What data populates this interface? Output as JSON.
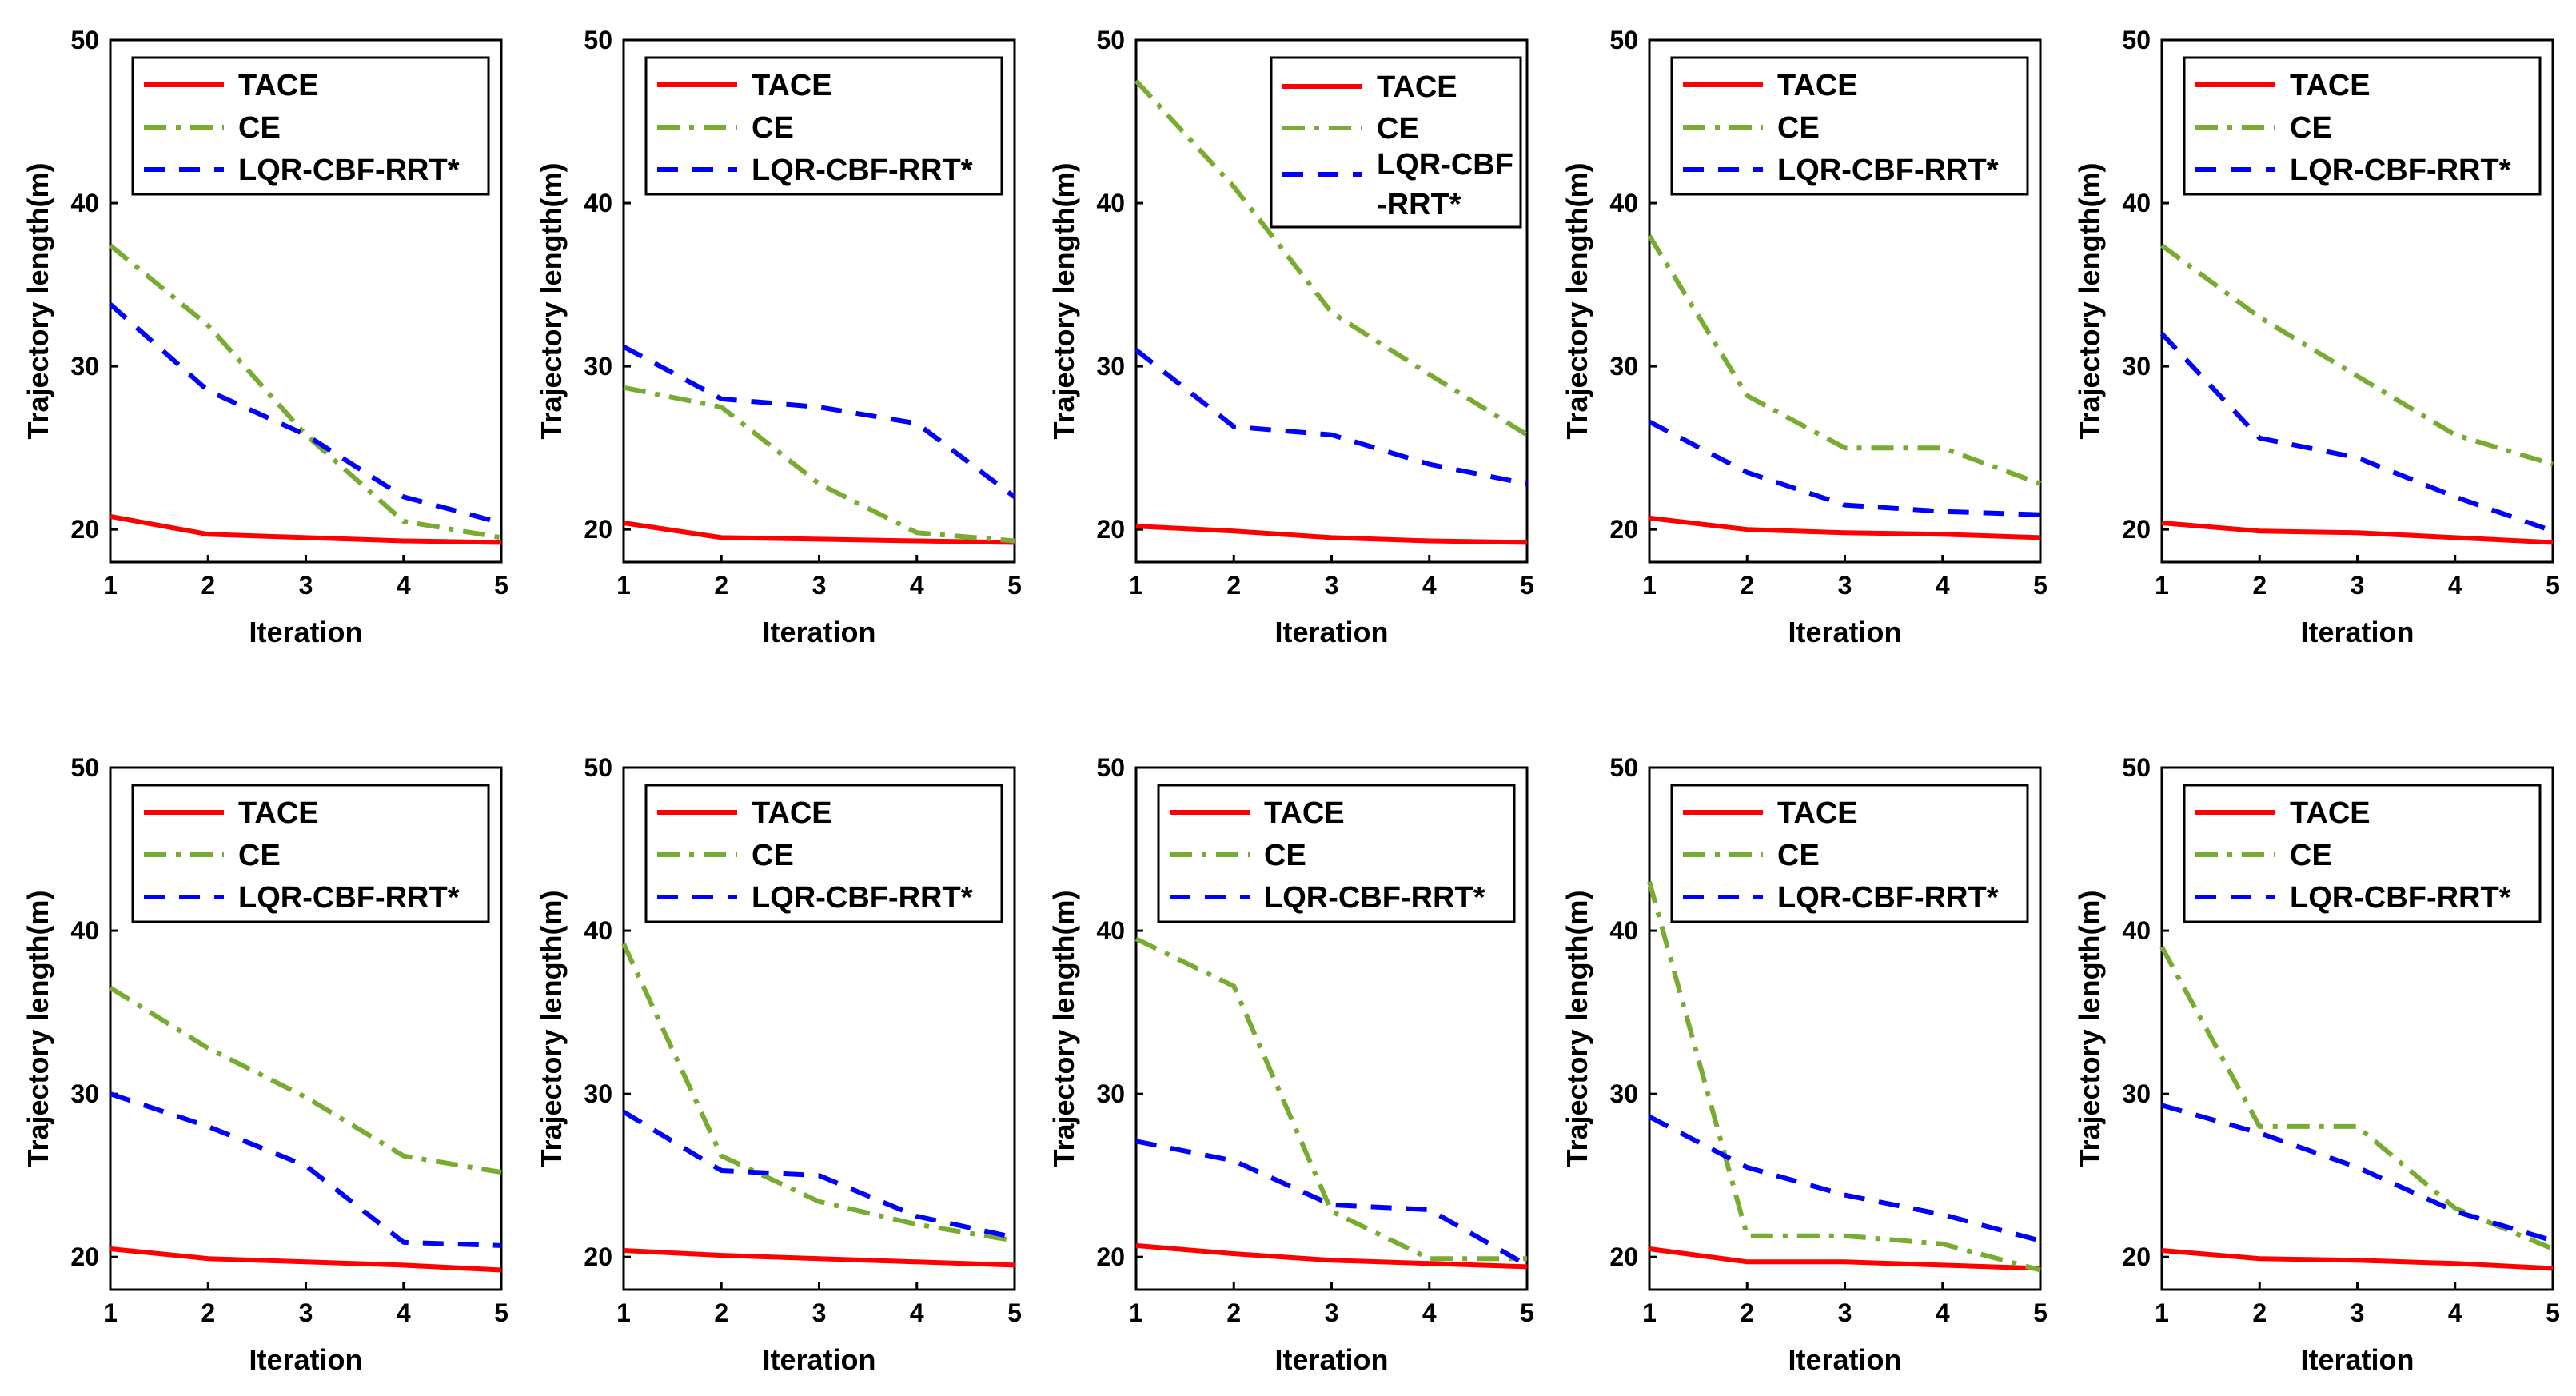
{
  "chart_data": {
    "type": "line",
    "x": [
      1,
      2,
      3,
      4,
      5
    ],
    "xlabel": "Iteration",
    "ylabel": "Trajectory length(m)",
    "xlim": [
      1,
      5
    ],
    "ylim": [
      18,
      50
    ],
    "yticks": [
      20,
      30,
      40,
      50
    ],
    "legend_position": "top-right",
    "series_styles": {
      "TACE": {
        "color": "#ff0000",
        "dash": "solid"
      },
      "CE": {
        "color": "#77ac30",
        "dash": "dashdot"
      },
      "LQR-CBF-RRT*": {
        "color": "#0000ff",
        "dash": "dashed"
      }
    },
    "panels": [
      {
        "legend": [
          "TACE",
          "CE",
          "LQR-CBF-RRT*"
        ],
        "series": [
          {
            "name": "TACE",
            "values": [
              20.8,
              19.7,
              19.5,
              19.3,
              19.2
            ]
          },
          {
            "name": "CE",
            "values": [
              37.4,
              32.5,
              25.8,
              20.5,
              19.5
            ]
          },
          {
            "name": "LQR-CBF-RRT*",
            "values": [
              33.8,
              28.5,
              25.8,
              22.0,
              20.4
            ]
          }
        ]
      },
      {
        "legend": [
          "TACE",
          "CE",
          "LQR-CBF-RRT*"
        ],
        "series": [
          {
            "name": "TACE",
            "values": [
              20.4,
              19.5,
              19.4,
              19.3,
              19.2
            ]
          },
          {
            "name": "CE",
            "values": [
              28.7,
              27.5,
              22.8,
              19.8,
              19.3
            ]
          },
          {
            "name": "LQR-CBF-RRT*",
            "values": [
              31.2,
              28.0,
              27.5,
              26.5,
              22.0
            ]
          }
        ]
      },
      {
        "legend": [
          "TACE",
          "CE",
          "LQR-CBF",
          "-RRT*"
        ],
        "series": [
          {
            "name": "TACE",
            "values": [
              20.2,
              19.9,
              19.5,
              19.3,
              19.2
            ]
          },
          {
            "name": "CE",
            "values": [
              47.5,
              41.0,
              33.3,
              29.5,
              25.8
            ]
          },
          {
            "name": "LQR-CBF-RRT*",
            "values": [
              31.0,
              26.3,
              25.8,
              24.0,
              22.8
            ]
          }
        ]
      },
      {
        "legend": [
          "TACE",
          "CE",
          "LQR-CBF-RRT*"
        ],
        "series": [
          {
            "name": "TACE",
            "values": [
              20.7,
              20.0,
              19.8,
              19.7,
              19.5
            ]
          },
          {
            "name": "CE",
            "values": [
              38.0,
              28.2,
              25.0,
              25.0,
              22.8
            ]
          },
          {
            "name": "LQR-CBF-RRT*",
            "values": [
              26.6,
              23.5,
              21.5,
              21.1,
              20.9
            ]
          }
        ]
      },
      {
        "legend": [
          "TACE",
          "CE",
          "LQR-CBF-RRT*"
        ],
        "series": [
          {
            "name": "TACE",
            "values": [
              20.4,
              19.9,
              19.8,
              19.5,
              19.2
            ]
          },
          {
            "name": "CE",
            "values": [
              37.4,
              33.0,
              29.4,
              25.8,
              24.0
            ]
          },
          {
            "name": "LQR-CBF-RRT*",
            "values": [
              32.0,
              25.6,
              24.4,
              22.0,
              19.9
            ]
          }
        ]
      },
      {
        "legend": [
          "TACE",
          "CE",
          "LQR-CBF-RRT*"
        ],
        "series": [
          {
            "name": "TACE",
            "values": [
              20.5,
              19.9,
              19.7,
              19.5,
              19.2
            ]
          },
          {
            "name": "CE",
            "values": [
              36.5,
              32.8,
              29.8,
              26.2,
              25.2
            ]
          },
          {
            "name": "LQR-CBF-RRT*",
            "values": [
              30.0,
              28.0,
              25.6,
              20.9,
              20.7
            ]
          }
        ]
      },
      {
        "legend": [
          "TACE",
          "CE",
          "LQR-CBF-RRT*"
        ],
        "series": [
          {
            "name": "TACE",
            "values": [
              20.4,
              20.1,
              19.9,
              19.7,
              19.5
            ]
          },
          {
            "name": "CE",
            "values": [
              39.2,
              26.2,
              23.4,
              22.0,
              21.0
            ]
          },
          {
            "name": "LQR-CBF-RRT*",
            "values": [
              28.9,
              25.3,
              25.0,
              22.5,
              21.2
            ]
          }
        ]
      },
      {
        "legend": [
          "TACE",
          "CE",
          "LQR-CBF-RRT*"
        ],
        "series": [
          {
            "name": "TACE",
            "values": [
              20.7,
              20.2,
              19.8,
              19.6,
              19.4
            ]
          },
          {
            "name": "CE",
            "values": [
              39.5,
              36.6,
              22.8,
              19.9,
              19.9
            ]
          },
          {
            "name": "LQR-CBF-RRT*",
            "values": [
              27.1,
              25.9,
              23.2,
              22.9,
              19.5
            ]
          }
        ]
      },
      {
        "legend": [
          "TACE",
          "CE",
          "LQR-CBF-RRT*"
        ],
        "series": [
          {
            "name": "TACE",
            "values": [
              20.5,
              19.7,
              19.7,
              19.5,
              19.3
            ]
          },
          {
            "name": "CE",
            "values": [
              43.0,
              21.3,
              21.3,
              20.8,
              19.2
            ]
          },
          {
            "name": "LQR-CBF-RRT*",
            "values": [
              28.6,
              25.5,
              23.8,
              22.6,
              21.0
            ]
          }
        ]
      },
      {
        "legend": [
          "TACE",
          "CE",
          "LQR-CBF-RRT*"
        ],
        "series": [
          {
            "name": "TACE",
            "values": [
              20.4,
              19.9,
              19.8,
              19.6,
              19.3
            ]
          },
          {
            "name": "CE",
            "values": [
              39.0,
              28.0,
              28.0,
              23.0,
              20.5
            ]
          },
          {
            "name": "LQR-CBF-RRT*",
            "values": [
              29.3,
              27.6,
              25.5,
              22.8,
              21.0
            ]
          }
        ]
      }
    ]
  }
}
